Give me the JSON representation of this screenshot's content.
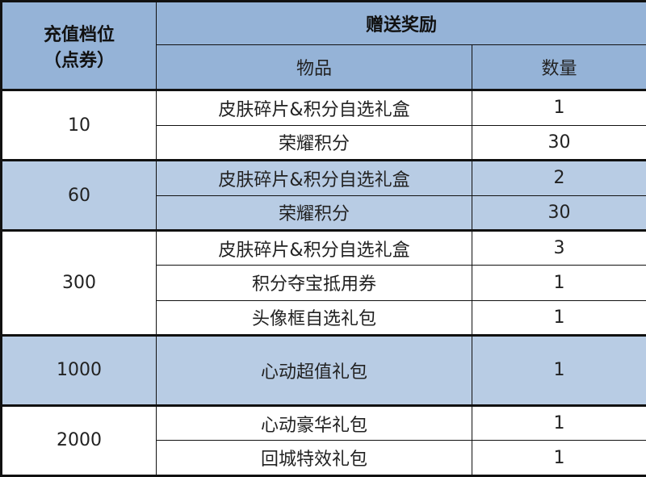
{
  "header": {
    "tier_label": "充值档位",
    "tier_unit": "（点券）",
    "reward_label": "赠送奖励",
    "item_label": "物品",
    "qty_label": "数量"
  },
  "colors": {
    "header": "#95b3d7",
    "band": "#b8cce4"
  },
  "groups": [
    {
      "tier": "10",
      "band": false,
      "rows": [
        {
          "item": "皮肤碎片&积分自选礼盒",
          "qty": "1"
        },
        {
          "item": "荣耀积分",
          "qty": "30"
        }
      ]
    },
    {
      "tier": "60",
      "band": true,
      "rows": [
        {
          "item": "皮肤碎片&积分自选礼盒",
          "qty": "2"
        },
        {
          "item": "荣耀积分",
          "qty": "30"
        }
      ]
    },
    {
      "tier": "300",
      "band": false,
      "rows": [
        {
          "item": "皮肤碎片&积分自选礼盒",
          "qty": "3"
        },
        {
          "item": "积分夺宝抵用券",
          "qty": "1"
        },
        {
          "item": "头像框自选礼包",
          "qty": "1"
        }
      ]
    },
    {
      "tier": "1000",
      "band": true,
      "rows": [
        {
          "item": "心动超值礼包",
          "qty": "1"
        }
      ]
    },
    {
      "tier": "2000",
      "band": false,
      "rows": [
        {
          "item": "心动豪华礼包",
          "qty": "1"
        },
        {
          "item": "回城特效礼包",
          "qty": "1"
        }
      ]
    }
  ]
}
